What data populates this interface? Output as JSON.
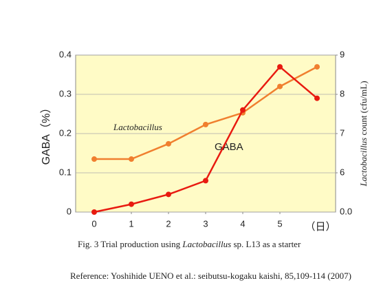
{
  "chart_data": {
    "type": "line",
    "x": [
      0,
      1,
      2,
      3,
      4,
      5,
      6
    ],
    "xlim": [
      -0.5,
      6.5
    ],
    "xticks": [
      0,
      1,
      2,
      3,
      4,
      5
    ],
    "x_label": "（日）",
    "ylim": [
      0,
      0.4
    ],
    "yticks": [
      0,
      0.1,
      0.2,
      0.3,
      0.4
    ],
    "y_label": "GABA（%）",
    "y2lim": [
      5,
      9
    ],
    "y2ticks": [
      6,
      7,
      8,
      9
    ],
    "y2_bottom_label": "0.0",
    "y2_label": [
      "Lactobacillus",
      " count (cfu/mL)"
    ],
    "grid": true,
    "background": "#fffbc6",
    "series": [
      {
        "name": "Lactobacillus",
        "color": "#f07f2f",
        "axis": "y2",
        "values": [
          6.35,
          6.35,
          6.74,
          7.23,
          7.53,
          8.2,
          8.7
        ]
      },
      {
        "name": "GABA",
        "color": "#e81a10",
        "values": [
          0,
          0.02,
          0.045,
          0.08,
          0.26,
          0.37,
          0.29
        ]
      }
    ],
    "caption": [
      "Fig. 3 Trial production using ",
      "Lactobacillus",
      " sp. L13 as a starter"
    ],
    "reference": "Reference: Yoshihide UENO et al.: seibutsu-kogaku kaishi, 85,109-114 (2007)"
  }
}
